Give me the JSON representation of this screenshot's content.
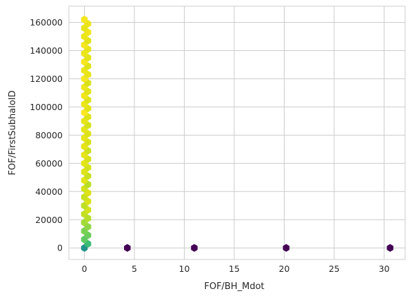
{
  "chart_data": {
    "type": "hexbin",
    "title": "",
    "xlabel": "FOF/BH_Mdot",
    "ylabel": "FOF/FirstSubhaloID",
    "xlim": [
      -1.55,
      32.1
    ],
    "ylim": [
      -8200,
      171500
    ],
    "x_ticks": [
      0,
      5,
      10,
      15,
      20,
      25,
      30
    ],
    "y_ticks": [
      0,
      20000,
      40000,
      60000,
      80000,
      100000,
      120000,
      140000,
      160000
    ],
    "x_tick_labels": [
      "0",
      "5",
      "10",
      "15",
      "20",
      "25",
      "30"
    ],
    "y_tick_labels": [
      "0",
      "20000",
      "40000",
      "60000",
      "80000",
      "100000",
      "120000",
      "140000",
      "160000"
    ],
    "grid": true,
    "colormap": "viridis",
    "bins": [
      {
        "x": 0.0,
        "y": 0,
        "color": "#21918c"
      },
      {
        "x": 0.35,
        "y": 2900,
        "color": "#3bbb75"
      },
      {
        "x": 0.0,
        "y": 6000,
        "color": "#5ec962"
      },
      {
        "x": 0.35,
        "y": 9000,
        "color": "#6ccd5a"
      },
      {
        "x": 0.0,
        "y": 12000,
        "color": "#7ad151"
      },
      {
        "x": 0.35,
        "y": 15000,
        "color": "#8ed645"
      },
      {
        "x": 0.0,
        "y": 18000,
        "color": "#a2da37"
      },
      {
        "x": 0.35,
        "y": 21000,
        "color": "#b5de2b"
      },
      {
        "x": 0.0,
        "y": 24000,
        "color": "#c2df23"
      },
      {
        "x": 0.35,
        "y": 27000,
        "color": "#d2e21b"
      },
      {
        "x": 0.0,
        "y": 30000,
        "color": "#bddf26"
      },
      {
        "x": 0.35,
        "y": 33000,
        "color": "#d8e219"
      },
      {
        "x": 0.0,
        "y": 36000,
        "color": "#c8e020"
      },
      {
        "x": 0.35,
        "y": 39000,
        "color": "#dde318"
      },
      {
        "x": 0.0,
        "y": 42000,
        "color": "#d2e21b"
      },
      {
        "x": 0.35,
        "y": 45000,
        "color": "#b8de29"
      },
      {
        "x": 0.0,
        "y": 48000,
        "color": "#e2e418"
      },
      {
        "x": 0.35,
        "y": 51000,
        "color": "#c8e020"
      },
      {
        "x": 0.0,
        "y": 54000,
        "color": "#dde318"
      },
      {
        "x": 0.35,
        "y": 57000,
        "color": "#d2e21b"
      },
      {
        "x": 0.0,
        "y": 60000,
        "color": "#e5e419"
      },
      {
        "x": 0.35,
        "y": 63000,
        "color": "#d8e219"
      },
      {
        "x": 0.0,
        "y": 66000,
        "color": "#e7e419"
      },
      {
        "x": 0.35,
        "y": 69000,
        "color": "#cde11d"
      },
      {
        "x": 0.0,
        "y": 72000,
        "color": "#e5e419"
      },
      {
        "x": 0.35,
        "y": 75000,
        "color": "#d8e219"
      },
      {
        "x": 0.0,
        "y": 78000,
        "color": "#e7e419"
      },
      {
        "x": 0.35,
        "y": 81000,
        "color": "#dde318"
      },
      {
        "x": 0.0,
        "y": 84000,
        "color": "#e5e419"
      },
      {
        "x": 0.35,
        "y": 87000,
        "color": "#d2e21b"
      },
      {
        "x": 0.0,
        "y": 90000,
        "color": "#e7e419"
      },
      {
        "x": 0.35,
        "y": 93000,
        "color": "#dde318"
      },
      {
        "x": 0.0,
        "y": 96000,
        "color": "#fde725"
      },
      {
        "x": 0.35,
        "y": 99000,
        "color": "#e2e418"
      },
      {
        "x": 0.0,
        "y": 102000,
        "color": "#ece51b"
      },
      {
        "x": 0.35,
        "y": 105000,
        "color": "#dde318"
      },
      {
        "x": 0.0,
        "y": 108000,
        "color": "#f1e51d"
      },
      {
        "x": 0.35,
        "y": 111000,
        "color": "#e2e418"
      },
      {
        "x": 0.0,
        "y": 114000,
        "color": "#ece51b"
      },
      {
        "x": 0.35,
        "y": 117000,
        "color": "#d8e219"
      },
      {
        "x": 0.0,
        "y": 120000,
        "color": "#f6e620"
      },
      {
        "x": 0.35,
        "y": 123000,
        "color": "#e7e419"
      },
      {
        "x": 0.0,
        "y": 126000,
        "color": "#ece51b"
      },
      {
        "x": 0.35,
        "y": 129000,
        "color": "#dde318"
      },
      {
        "x": 0.0,
        "y": 132000,
        "color": "#f6e620"
      },
      {
        "x": 0.35,
        "y": 135000,
        "color": "#e2e418"
      },
      {
        "x": 0.0,
        "y": 138000,
        "color": "#ece51b"
      },
      {
        "x": 0.35,
        "y": 141000,
        "color": "#e7e419"
      },
      {
        "x": 0.0,
        "y": 144000,
        "color": "#f6e620"
      },
      {
        "x": 0.35,
        "y": 147000,
        "color": "#e2e418"
      },
      {
        "x": 0.0,
        "y": 150000,
        "color": "#ece51b"
      },
      {
        "x": 0.35,
        "y": 153000,
        "color": "#f1e51d"
      },
      {
        "x": 0.0,
        "y": 156000,
        "color": "#e7e419"
      },
      {
        "x": 0.35,
        "y": 159000,
        "color": "#ece51b"
      },
      {
        "x": 0.0,
        "y": 162000,
        "color": "#f6e620"
      },
      {
        "x": 4.3,
        "y": 0,
        "color": "#440154"
      },
      {
        "x": 11.0,
        "y": 0,
        "color": "#440154"
      },
      {
        "x": 20.2,
        "y": 0,
        "color": "#440154"
      },
      {
        "x": 30.6,
        "y": 0,
        "color": "#440154"
      }
    ]
  }
}
